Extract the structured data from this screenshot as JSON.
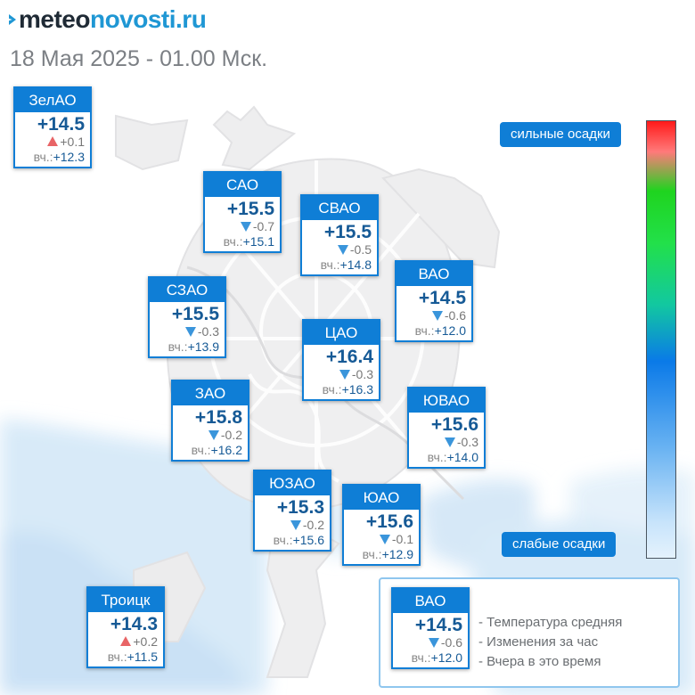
{
  "header": {
    "brand_part1": "meteo",
    "brand_part2": "novosti.ru",
    "timestamp": "18 Мая 2025 - 01.00 Мск."
  },
  "districts": [
    {
      "name": "ЗелАО",
      "temp": "+14.5",
      "change": "+0.1",
      "trend": "up",
      "yesterday_label": "вч.:",
      "yesterday": "+12.3"
    },
    {
      "name": "САО",
      "temp": "+15.5",
      "change": "-0.7",
      "trend": "down",
      "yesterday_label": "вч.:",
      "yesterday": "+15.1"
    },
    {
      "name": "СВАО",
      "temp": "+15.5",
      "change": "-0.5",
      "trend": "down",
      "yesterday_label": "вч.:",
      "yesterday": "+14.8"
    },
    {
      "name": "ВАО",
      "temp": "+14.5",
      "change": "-0.6",
      "trend": "down",
      "yesterday_label": "вч.:",
      "yesterday": "+12.0"
    },
    {
      "name": "СЗАО",
      "temp": "+15.5",
      "change": "-0.3",
      "trend": "down",
      "yesterday_label": "вч.:",
      "yesterday": "+13.9"
    },
    {
      "name": "ЦАО",
      "temp": "+16.4",
      "change": "-0.3",
      "trend": "down",
      "yesterday_label": "вч.:",
      "yesterday": "+16.3"
    },
    {
      "name": "ЗАО",
      "temp": "+15.8",
      "change": "-0.2",
      "trend": "down",
      "yesterday_label": "вч.:",
      "yesterday": "+16.2"
    },
    {
      "name": "ЮВАО",
      "temp": "+15.6",
      "change": "-0.3",
      "trend": "down",
      "yesterday_label": "вч.:",
      "yesterday": "+14.0"
    },
    {
      "name": "ЮЗАО",
      "temp": "+15.3",
      "change": "-0.2",
      "trend": "down",
      "yesterday_label": "вч.:",
      "yesterday": "+15.6"
    },
    {
      "name": "ЮАО",
      "temp": "+15.6",
      "change": "-0.1",
      "trend": "down",
      "yesterday_label": "вч.:",
      "yesterday": "+12.9"
    },
    {
      "name": "Троицк",
      "temp": "+14.3",
      "change": "+0.2",
      "trend": "up",
      "yesterday_label": "вч.:",
      "yesterday": "+11.5"
    }
  ],
  "precip_scale": {
    "high_label": "сильные осадки",
    "low_label": "слабые осадки"
  },
  "legend": {
    "sample": {
      "name": "ВАО",
      "temp": "+14.5",
      "change": "-0.6",
      "trend": "down",
      "yesterday_label": "вч.:",
      "yesterday": "+12.0"
    },
    "line1": "- Температура средняя",
    "line2": "- Изменения за час",
    "line3": "- Вчера в это время"
  },
  "colors": {
    "card_header": "#0f7ed6",
    "temp_text": "#165a96",
    "trend_down": "#3a95db",
    "trend_up": "#e86466",
    "precip_light": "#dcedf9"
  }
}
